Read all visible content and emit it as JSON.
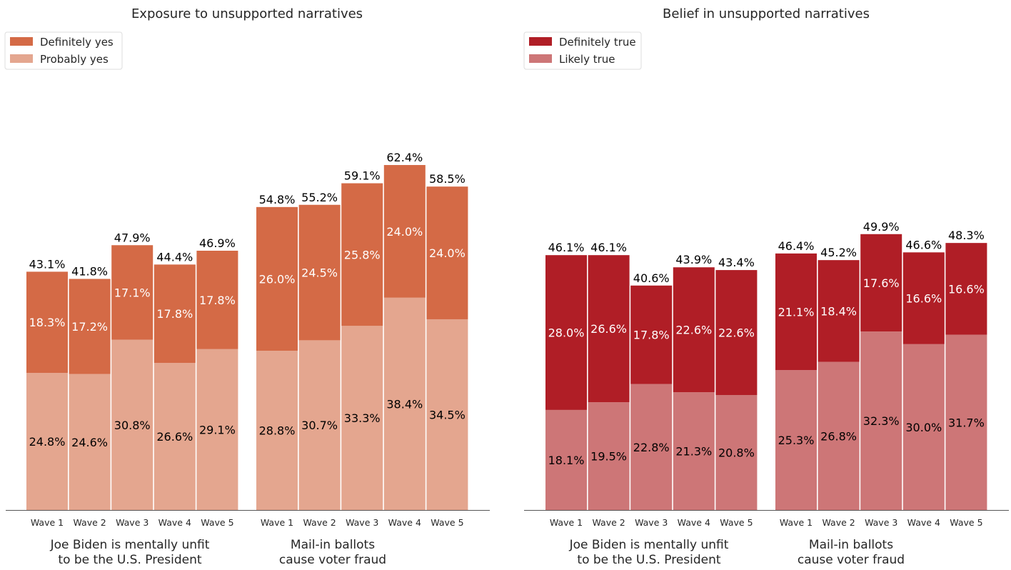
{
  "chart_data": [
    {
      "type": "bar",
      "stacked": true,
      "title": "Exposure to unsupported narratives",
      "legend": {
        "placement": "top-left",
        "entries": [
          {
            "name": "Definitely yes",
            "color": "#d46a46"
          },
          {
            "name": "Probably yes",
            "color": "#e4a68f"
          }
        ]
      },
      "grid": false,
      "categories": [
        "Wave 1",
        "Wave 2",
        "Wave 3",
        "Wave 4",
        "Wave 5"
      ],
      "groups": [
        {
          "label_lines": [
            "Joe Biden is mentally unfit",
            "to be the U.S. President"
          ],
          "series": [
            {
              "name": "Probably yes",
              "values": [
                24.8,
                24.6,
                30.8,
                26.6,
                29.1
              ],
              "labels": [
                "24.8%",
                "24.6%",
                "30.8%",
                "26.6%",
                "29.1%"
              ]
            },
            {
              "name": "Definitely yes",
              "values": [
                18.3,
                17.2,
                17.1,
                17.8,
                17.8
              ],
              "labels": [
                "18.3%",
                "17.2%",
                "17.1%",
                "17.8%",
                "17.8%"
              ]
            }
          ],
          "totals": [
            "43.1%",
            "41.8%",
            "47.9%",
            "44.4%",
            "46.9%"
          ]
        },
        {
          "label_lines": [
            "Mail-in ballots",
            "cause voter fraud"
          ],
          "series": [
            {
              "name": "Probably yes",
              "values": [
                28.8,
                30.7,
                33.3,
                38.4,
                34.5
              ],
              "labels": [
                "28.8%",
                "30.7%",
                "33.3%",
                "38.4%",
                "34.5%"
              ]
            },
            {
              "name": "Definitely yes",
              "values": [
                26.0,
                24.5,
                25.8,
                24.0,
                24.0
              ],
              "labels": [
                "26.0%",
                "24.5%",
                "25.8%",
                "24.0%",
                "24.0%"
              ]
            }
          ],
          "totals": [
            "54.8%",
            "55.2%",
            "59.1%",
            "62.4%",
            "58.5%"
          ]
        }
      ],
      "ylim": [
        0,
        65
      ]
    },
    {
      "type": "bar",
      "stacked": true,
      "title": "Belief in unsupported narratives",
      "legend": {
        "placement": "top-left",
        "entries": [
          {
            "name": "Definitely true",
            "color": "#b01e26"
          },
          {
            "name": "Likely true",
            "color": "#cd7677"
          }
        ]
      },
      "grid": false,
      "categories": [
        "Wave 1",
        "Wave 2",
        "Wave 3",
        "Wave 4",
        "Wave 5"
      ],
      "groups": [
        {
          "label_lines": [
            "Joe Biden is mentally unfit",
            "to be the U.S. President"
          ],
          "series": [
            {
              "name": "Likely true",
              "values": [
                18.1,
                19.5,
                22.8,
                21.3,
                20.8
              ],
              "labels": [
                "18.1%",
                "19.5%",
                "22.8%",
                "21.3%",
                "20.8%"
              ]
            },
            {
              "name": "Definitely true",
              "values": [
                28.0,
                26.6,
                17.8,
                22.6,
                22.6
              ],
              "labels": [
                "28.0%",
                "26.6%",
                "17.8%",
                "22.6%",
                "22.6%"
              ]
            }
          ],
          "totals": [
            "46.1%",
            "46.1%",
            "40.6%",
            "43.9%",
            "43.4%"
          ]
        },
        {
          "label_lines": [
            "Mail-in ballots",
            "cause voter fraud"
          ],
          "series": [
            {
              "name": "Likely true",
              "values": [
                25.3,
                26.8,
                32.3,
                30.0,
                31.7
              ],
              "labels": [
                "25.3%",
                "26.8%",
                "32.3%",
                "30.0%",
                "31.7%"
              ]
            },
            {
              "name": "Definitely true",
              "values": [
                21.1,
                18.4,
                17.6,
                16.6,
                16.6
              ],
              "labels": [
                "21.1%",
                "18.4%",
                "17.6%",
                "16.6%",
                "16.6%"
              ]
            }
          ],
          "totals": [
            "46.4%",
            "45.2%",
            "49.9%",
            "46.6%",
            "48.3%"
          ]
        }
      ],
      "ylim": [
        0,
        65
      ]
    }
  ]
}
